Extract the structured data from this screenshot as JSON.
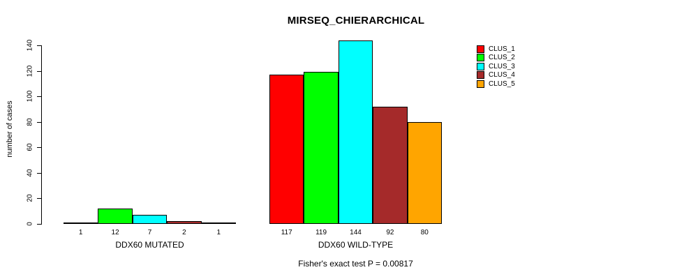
{
  "chart_data": {
    "type": "bar",
    "title": "MIRSEQ_CHIERARCHICAL",
    "xlabel": "",
    "ylabel": "number of cases",
    "ylim": [
      0,
      140
    ],
    "yticks": [
      0,
      20,
      40,
      60,
      80,
      100,
      120,
      140
    ],
    "grid": false,
    "legend_position": "top-right",
    "categories": [
      "DDX60 MUTATED",
      "DDX60 WILD-TYPE"
    ],
    "series": [
      {
        "name": "CLUS_1",
        "color": "#FF0000",
        "values": [
          1,
          117
        ]
      },
      {
        "name": "CLUS_2",
        "color": "#00FF00",
        "values": [
          12,
          119
        ]
      },
      {
        "name": "CLUS_3",
        "color": "#00FFFF",
        "values": [
          7,
          144
        ]
      },
      {
        "name": "CLUS_4",
        "color": "#A52A2A",
        "values": [
          2,
          92
        ]
      },
      {
        "name": "CLUS_5",
        "color": "#FFA500",
        "values": [
          1,
          80
        ]
      }
    ],
    "annotation": "Fisher's exact test P = 0.00817",
    "axis_color": "#000000",
    "background_color": "#FFFFFF"
  }
}
